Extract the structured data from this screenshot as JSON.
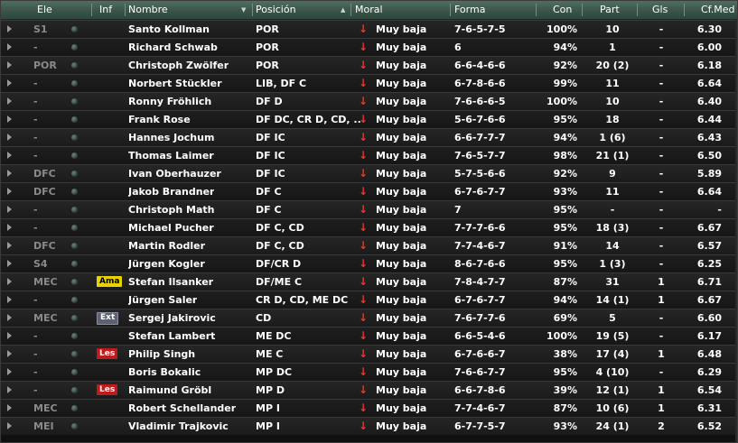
{
  "columns": {
    "ele": "Ele",
    "inf": "Inf",
    "nombre": "Nombre",
    "posicion": "Posición",
    "moral": "Moral",
    "forma": "Forma",
    "con": "Con",
    "part": "Part",
    "gls": "Gls",
    "cfmed": "Cf.Med"
  },
  "players": [
    {
      "ele": "S1",
      "inf": "",
      "nombre": "Santo Kollman",
      "posicion": "POR",
      "moral": "Muy baja",
      "forma": "7-6-5-7-5",
      "con": "100%",
      "part": "10",
      "gls": "-",
      "cfmed": "6.30"
    },
    {
      "ele": "-",
      "inf": "",
      "nombre": "Richard Schwab",
      "posicion": "POR",
      "moral": "Muy baja",
      "forma": "6",
      "con": "94%",
      "part": "1",
      "gls": "-",
      "cfmed": "6.00"
    },
    {
      "ele": "POR",
      "inf": "",
      "nombre": "Christoph Zwölfer",
      "posicion": "POR",
      "moral": "Muy baja",
      "forma": "6-6-4-6-6",
      "con": "92%",
      "part": "20 (2)",
      "gls": "-",
      "cfmed": "6.18"
    },
    {
      "ele": "-",
      "inf": "",
      "nombre": "Norbert Stückler",
      "posicion": "LIB, DF C",
      "moral": "Muy baja",
      "forma": "6-7-8-6-6",
      "con": "99%",
      "part": "11",
      "gls": "-",
      "cfmed": "6.64"
    },
    {
      "ele": "-",
      "inf": "",
      "nombre": "Ronny Fröhlich",
      "posicion": "DF D",
      "moral": "Muy baja",
      "forma": "7-6-6-6-5",
      "con": "100%",
      "part": "10",
      "gls": "-",
      "cfmed": "6.40"
    },
    {
      "ele": "-",
      "inf": "",
      "nombre": "Frank Rose",
      "posicion": "DF DC, CR D, CD, ..",
      "moral": "Muy baja",
      "forma": "5-6-7-6-6",
      "con": "95%",
      "part": "18",
      "gls": "-",
      "cfmed": "6.44"
    },
    {
      "ele": "-",
      "inf": "",
      "nombre": "Hannes Jochum",
      "posicion": "DF IC",
      "moral": "Muy baja",
      "forma": "6-6-7-7-7",
      "con": "94%",
      "part": "1 (6)",
      "gls": "-",
      "cfmed": "6.43"
    },
    {
      "ele": "-",
      "inf": "",
      "nombre": "Thomas Laimer",
      "posicion": "DF IC",
      "moral": "Muy baja",
      "forma": "7-6-5-7-7",
      "con": "98%",
      "part": "21 (1)",
      "gls": "-",
      "cfmed": "6.50"
    },
    {
      "ele": "DFC",
      "inf": "",
      "nombre": "Ivan Oberhauzer",
      "posicion": "DF IC",
      "moral": "Muy baja",
      "forma": "5-7-5-6-6",
      "con": "92%",
      "part": "9",
      "gls": "-",
      "cfmed": "5.89"
    },
    {
      "ele": "DFC",
      "inf": "",
      "nombre": "Jakob Brandner",
      "posicion": "DF C",
      "moral": "Muy baja",
      "forma": "6-7-6-7-7",
      "con": "93%",
      "part": "11",
      "gls": "-",
      "cfmed": "6.64"
    },
    {
      "ele": "-",
      "inf": "",
      "nombre": "Christoph Math",
      "posicion": "DF C",
      "moral": "Muy baja",
      "forma": "7",
      "con": "95%",
      "part": "-",
      "gls": "-",
      "cfmed": "-"
    },
    {
      "ele": "-",
      "inf": "",
      "nombre": "Michael Pucher",
      "posicion": "DF C, CD",
      "moral": "Muy baja",
      "forma": "7-7-7-6-6",
      "con": "95%",
      "part": "18 (3)",
      "gls": "-",
      "cfmed": "6.67"
    },
    {
      "ele": "DFC",
      "inf": "",
      "nombre": "Martin Rodler",
      "posicion": "DF C, CD",
      "moral": "Muy baja",
      "forma": "7-7-4-6-7",
      "con": "91%",
      "part": "14",
      "gls": "-",
      "cfmed": "6.57"
    },
    {
      "ele": "S4",
      "inf": "",
      "nombre": "Jürgen Kogler",
      "posicion": "DF/CR D",
      "moral": "Muy baja",
      "forma": "8-6-7-6-6",
      "con": "95%",
      "part": "1 (3)",
      "gls": "-",
      "cfmed": "6.25"
    },
    {
      "ele": "MEC",
      "inf": "Ama",
      "nombre": "Stefan Ilsanker",
      "posicion": "DF/ME C",
      "moral": "Muy baja",
      "forma": "7-8-4-7-7",
      "con": "87%",
      "part": "31",
      "gls": "1",
      "cfmed": "6.71"
    },
    {
      "ele": "-",
      "inf": "",
      "nombre": "Jürgen Saler",
      "posicion": "CR D, CD, ME DC",
      "moral": "Muy baja",
      "forma": "6-7-6-7-7",
      "con": "94%",
      "part": "14 (1)",
      "gls": "1",
      "cfmed": "6.67"
    },
    {
      "ele": "MEC",
      "inf": "Ext",
      "nombre": "Sergej Jakirovic",
      "posicion": "CD",
      "moral": "Muy baja",
      "forma": "7-6-7-7-6",
      "con": "69%",
      "part": "5",
      "gls": "-",
      "cfmed": "6.60"
    },
    {
      "ele": "-",
      "inf": "",
      "nombre": "Stefan Lambert",
      "posicion": "ME DC",
      "moral": "Muy baja",
      "forma": "6-6-5-4-6",
      "con": "100%",
      "part": "19 (5)",
      "gls": "-",
      "cfmed": "6.17"
    },
    {
      "ele": "-",
      "inf": "Les",
      "nombre": "Philip Singh",
      "posicion": "ME C",
      "moral": "Muy baja",
      "forma": "6-7-6-6-7",
      "con": "38%",
      "part": "17 (4)",
      "gls": "1",
      "cfmed": "6.48"
    },
    {
      "ele": "-",
      "inf": "",
      "nombre": "Boris Bokalic",
      "posicion": "MP DC",
      "moral": "Muy baja",
      "forma": "7-6-6-7-7",
      "con": "95%",
      "part": "4 (10)",
      "gls": "-",
      "cfmed": "6.29"
    },
    {
      "ele": "-",
      "inf": "Les",
      "nombre": "Raimund Gröbl",
      "posicion": "MP D",
      "moral": "Muy baja",
      "forma": "6-6-7-8-6",
      "con": "39%",
      "part": "12 (1)",
      "gls": "1",
      "cfmed": "6.54"
    },
    {
      "ele": "MEC",
      "inf": "",
      "nombre": "Robert Schellander",
      "posicion": "MP I",
      "moral": "Muy baja",
      "forma": "7-7-4-6-7",
      "con": "87%",
      "part": "10 (6)",
      "gls": "1",
      "cfmed": "6.31"
    },
    {
      "ele": "MEI",
      "inf": "",
      "nombre": "Vladimir Trajkovic",
      "posicion": "MP I",
      "moral": "Muy baja",
      "forma": "6-7-7-5-7",
      "con": "93%",
      "part": "24 (1)",
      "gls": "2",
      "cfmed": "6.52"
    }
  ],
  "icons": {
    "expand": "expand-arrow-icon",
    "status": "status-dot-icon",
    "moral": "down-arrow-icon",
    "sort": "sort-ascending-icon"
  },
  "colors": {
    "header": "#3a5549",
    "moral_arrow": "#e2392d",
    "ama": "#e8d200",
    "ext": "#5d6270",
    "les": "#c01b1b"
  }
}
